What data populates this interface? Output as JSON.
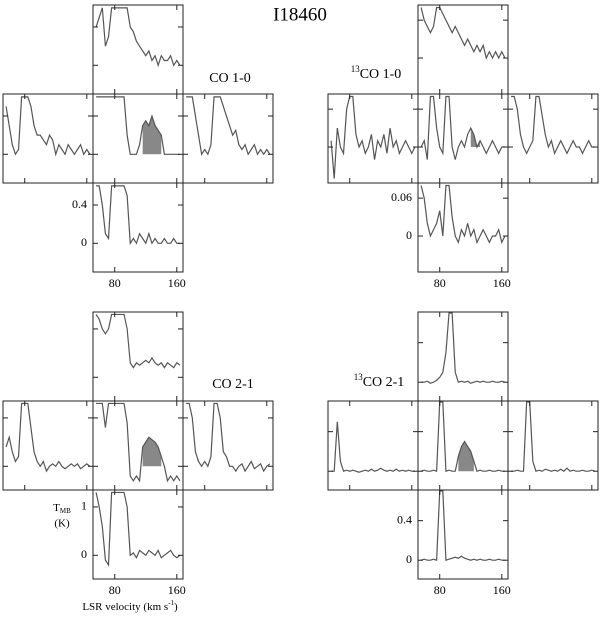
{
  "title": "I18460",
  "chart_data": [
    {
      "type": "line",
      "title_superscript": null,
      "title": "CO 1-0",
      "x": [
        56,
        60,
        64,
        68,
        72,
        76,
        80,
        84,
        88,
        92,
        96,
        100,
        104,
        108,
        112,
        116,
        120,
        124,
        128,
        132,
        136,
        140,
        144,
        148,
        152,
        156,
        160,
        164
      ],
      "xlim": [
        52,
        168
      ],
      "xticks": [
        80,
        160
      ],
      "ylim": [
        -0.3,
        0.63
      ],
      "yticks": [
        0.4,
        0
      ],
      "shade": [
        116,
        140
      ],
      "series": [
        {
          "values": [
            0.4,
            0.5,
            0.6,
            0.2,
            0.3,
            0.6,
            0.6,
            0.6,
            0.6,
            0.6,
            0.6,
            0.4,
            0.35,
            0.25,
            0.2,
            0.15,
            0.1,
            0.15,
            0.05,
            0.1,
            0.0,
            0.1,
            0.05,
            0.05,
            0.1,
            0.0,
            0.05,
            0.0
          ]
        },
        {
          "values": [
            0.5,
            0.3,
            0.1,
            0.0,
            0.05,
            0.6,
            0.6,
            0.6,
            0.5,
            0.3,
            0.2,
            0.2,
            0.15,
            0.1,
            0.2,
            0.15,
            0.0,
            0.1,
            0.05,
            0.0,
            0.1,
            0.05,
            0.0,
            0.05,
            0.1,
            0.0,
            0.05,
            0.0
          ]
        },
        {
          "values": [
            0.6,
            0.6,
            0.6,
            0.6,
            0.6,
            0.6,
            0.6,
            0.6,
            0.6,
            0.6,
            0.2,
            0.0,
            0.0,
            0.0,
            0.1,
            0.3,
            0.35,
            0.3,
            0.4,
            0.3,
            0.25,
            0.2,
            0.0,
            0.0,
            0.0,
            0.0,
            0.0,
            0.0
          ]
        },
        {
          "values": [
            0.6,
            0.6,
            0.6,
            0.4,
            0.2,
            0.0,
            0.05,
            0.0,
            0.1,
            0.6,
            0.6,
            0.6,
            0.5,
            0.4,
            0.3,
            0.2,
            0.25,
            0.1,
            0.05,
            0.1,
            0.0,
            0.05,
            0.1,
            0.0,
            0.05,
            0.0,
            0.05,
            0.0
          ]
        },
        {
          "values": [
            0.6,
            0.6,
            0.4,
            0.1,
            0.05,
            0.6,
            0.6,
            0.6,
            0.6,
            0.6,
            0.5,
            0.0,
            0.05,
            0.0,
            0.1,
            0.05,
            0.0,
            0.1,
            0.0,
            0.05,
            0.0,
            0.0,
            0.05,
            0.0,
            0.0,
            0.05,
            0.0,
            0.0
          ]
        }
      ]
    },
    {
      "type": "line",
      "title_superscript": "13",
      "title": "CO 1-0",
      "x": [
        56,
        60,
        64,
        68,
        72,
        76,
        80,
        84,
        88,
        92,
        96,
        100,
        104,
        108,
        112,
        116,
        120,
        124,
        128,
        132,
        136,
        140,
        144,
        148,
        152,
        156,
        160,
        164
      ],
      "xlim": [
        52,
        168
      ],
      "xticks": [
        80,
        160
      ],
      "ylim": [
        -0.057,
        0.084
      ],
      "yticks": [
        0.06,
        0
      ],
      "shade": [
        120,
        132
      ],
      "series": [
        {
          "values": [
            0.08,
            0.06,
            0.05,
            0.04,
            0.05,
            0.08,
            0.08,
            0.07,
            0.06,
            0.05,
            0.04,
            0.05,
            0.04,
            0.03,
            0.02,
            0.03,
            0.02,
            0.01,
            0.02,
            0.01,
            0.02,
            0.0,
            0.01,
            0.0,
            0.01,
            0.0,
            0.01,
            0.0
          ]
        },
        {
          "values": [
            0.01,
            -0.05,
            0.03,
            0.0,
            -0.01,
            0.06,
            0.08,
            0.08,
            0.02,
            0.0,
            0.01,
            -0.01,
            0.0,
            0.02,
            -0.02,
            0.01,
            0.0,
            0.02,
            -0.01,
            0.03,
            0.0,
            0.01,
            -0.01,
            0.0,
            0.01,
            0.0,
            -0.01,
            0.0
          ]
        },
        {
          "values": [
            0.0,
            0.01,
            -0.02,
            0.08,
            0.08,
            0.03,
            0.0,
            -0.01,
            0.08,
            0.08,
            0.0,
            -0.02,
            0.0,
            0.01,
            0.0,
            0.02,
            0.03,
            0.02,
            0.0,
            0.01,
            0.0,
            -0.01,
            0.0,
            0.01,
            0.0,
            -0.01,
            0.0,
            0.0
          ]
        },
        {
          "values": [
            0.08,
            0.08,
            0.06,
            0.02,
            0.0,
            -0.01,
            0.0,
            0.01,
            0.08,
            0.08,
            0.05,
            0.02,
            0.0,
            0.01,
            -0.01,
            0.0,
            0.01,
            0.0,
            -0.01,
            0.0,
            0.01,
            0.0,
            0.0,
            -0.01,
            0.0,
            0.01,
            0.0,
            0.0
          ]
        },
        {
          "values": [
            0.08,
            0.06,
            0.02,
            0.0,
            0.01,
            0.02,
            0.04,
            0.0,
            0.08,
            0.08,
            0.03,
            0.0,
            -0.01,
            0.01,
            0.0,
            0.02,
            0.0,
            0.01,
            -0.01,
            0.0,
            0.01,
            0.0,
            -0.01,
            0.0,
            0.0,
            0.01,
            -0.01,
            0.0
          ]
        }
      ]
    },
    {
      "type": "line",
      "title_superscript": null,
      "title": "CO 2-1",
      "x": [
        56,
        60,
        64,
        68,
        72,
        76,
        80,
        84,
        88,
        92,
        96,
        100,
        104,
        108,
        112,
        116,
        120,
        124,
        128,
        132,
        136,
        140,
        144,
        148,
        152,
        156,
        160,
        164
      ],
      "xlim": [
        52,
        168
      ],
      "xticks": [
        80,
        160
      ],
      "ylim": [
        -0.49,
        1.35
      ],
      "yticks": [
        1,
        0
      ],
      "shade": [
        116,
        140
      ],
      "ylabel": {
        "text": "T",
        "subscript": "MB",
        "unit": "(K)"
      },
      "xlabel": {
        "text": "LSR velocity (km s",
        "superscript": "-1",
        "end": ")"
      },
      "series": [
        {
          "values": [
            1.3,
            1.2,
            1.0,
            0.9,
            1.0,
            1.3,
            1.3,
            1.3,
            1.3,
            1.3,
            1.0,
            0.3,
            0.2,
            0.3,
            0.25,
            0.3,
            0.35,
            0.3,
            0.4,
            0.3,
            0.25,
            0.3,
            0.2,
            0.3,
            0.25,
            0.2,
            0.3,
            0.25
          ]
        },
        {
          "values": [
            0.4,
            0.6,
            0.3,
            0.1,
            0.2,
            1.3,
            1.3,
            1.3,
            0.8,
            0.3,
            0.1,
            0.0,
            0.1,
            -0.1,
            0.0,
            0.05,
            0.0,
            0.1,
            0.0,
            -0.05,
            0.0,
            0.05,
            0.0,
            0.05,
            -0.05,
            0.0,
            0.05,
            0.0
          ]
        },
        {
          "values": [
            1.3,
            1.3,
            1.3,
            0.8,
            1.3,
            1.3,
            1.3,
            1.3,
            1.3,
            1.3,
            0.9,
            -0.2,
            -0.3,
            -0.2,
            -0.3,
            0.4,
            0.5,
            0.6,
            0.55,
            0.5,
            0.4,
            0.2,
            0.0,
            -0.3,
            -0.2,
            -0.3,
            -0.2,
            -0.3
          ]
        },
        {
          "values": [
            1.3,
            1.3,
            1.0,
            0.3,
            0.1,
            0.0,
            0.1,
            0.0,
            0.2,
            1.3,
            1.3,
            1.0,
            0.3,
            0.2,
            0.0,
            0.0,
            -0.1,
            0.0,
            0.05,
            -0.1,
            0.0,
            0.1,
            -0.05,
            0.0,
            0.05,
            -0.1,
            0.0,
            0.05
          ]
        },
        {
          "values": [
            1.3,
            1.0,
            0.6,
            -0.1,
            -0.2,
            1.3,
            1.3,
            1.3,
            1.3,
            1.3,
            1.0,
            0.0,
            0.05,
            -0.05,
            0.1,
            0.05,
            0.0,
            0.1,
            0.05,
            0.0,
            0.1,
            -0.05,
            0.0,
            0.05,
            0.1,
            0.0,
            -0.05,
            0.0
          ]
        }
      ]
    },
    {
      "type": "line",
      "title_superscript": "13",
      "title": "CO 2-1",
      "x": [
        56,
        60,
        64,
        68,
        72,
        76,
        80,
        84,
        88,
        92,
        96,
        100,
        104,
        108,
        112,
        116,
        120,
        124,
        128,
        132,
        136,
        140,
        144,
        148,
        152,
        156,
        160,
        164
      ],
      "xlim": [
        52,
        168
      ],
      "xticks": [
        80,
        160
      ],
      "ylim": [
        -0.19,
        0.71
      ],
      "yticks": [
        0.4,
        0
      ],
      "shade": [
        104,
        124
      ],
      "series": [
        {
          "values": [
            0.0,
            0.0,
            0.01,
            -0.01,
            0.0,
            0.02,
            0.05,
            0.1,
            0.3,
            0.7,
            0.7,
            0.1,
            0.0,
            0.01,
            0.0,
            0.01,
            -0.01,
            0.0,
            0.01,
            0.0,
            0.01,
            0.0,
            0.0,
            0.01,
            0.0,
            0.0,
            0.01,
            0.0
          ]
        },
        {
          "values": [
            0.0,
            0.0,
            0.5,
            0.1,
            0.0,
            0.01,
            0.0,
            0.01,
            0.0,
            -0.01,
            0.0,
            0.01,
            0.0,
            0.02,
            0.0,
            0.01,
            0.03,
            0.01,
            0.0,
            0.01,
            0.0,
            0.02,
            0.0,
            0.01,
            0.0,
            0.01,
            0.0,
            0.0
          ]
        },
        {
          "values": [
            0.0,
            0.01,
            0.0,
            0.0,
            0.01,
            0.0,
            0.7,
            0.7,
            0.0,
            0.01,
            0.0,
            0.0,
            0.15,
            0.25,
            0.3,
            0.25,
            0.2,
            0.1,
            0.0,
            0.01,
            0.0,
            0.0,
            0.01,
            0.0,
            0.0,
            0.01,
            0.0,
            0.0
          ]
        },
        {
          "values": [
            0.0,
            0.0,
            0.01,
            0.0,
            0.0,
            0.7,
            0.7,
            0.1,
            0.0,
            0.01,
            0.0,
            0.02,
            0.01,
            0.0,
            0.01,
            0.0,
            0.02,
            0.0,
            0.03,
            0.0,
            0.01,
            0.0,
            0.0,
            0.01,
            0.0,
            0.0,
            0.01,
            0.0
          ]
        },
        {
          "values": [
            0.0,
            0.01,
            0.0,
            0.0,
            0.01,
            0.0,
            0.7,
            0.7,
            0.0,
            0.01,
            0.02,
            0.03,
            0.02,
            0.04,
            0.02,
            0.01,
            0.0,
            0.01,
            0.0,
            0.01,
            0.0,
            0.0,
            0.01,
            0.0,
            0.0,
            0.01,
            0.0,
            0.0
          ]
        }
      ]
    }
  ]
}
